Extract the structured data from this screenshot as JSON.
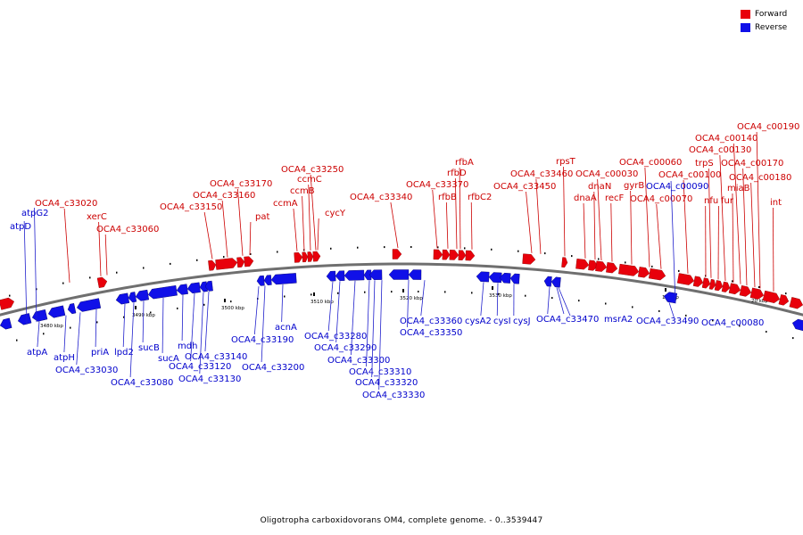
{
  "colors": {
    "forward": "#e8000b",
    "reverse": "#1010e8",
    "backbone": "#6f6f6f",
    "text_forward": "#cc0000",
    "text_reverse": "#0000cc"
  },
  "legend": {
    "forward_label": "Forward",
    "reverse_label": "Reverse"
  },
  "caption": "Oligotropha carboxidovorans OM4, complete genome. - 0..3539447",
  "ticks": [
    "3480 kbp",
    "3490 kbp",
    "3500 kbp",
    "3510 kbp",
    "3520 kbp",
    "3530 kbp",
    "10 kbp",
    "20 kbp"
  ],
  "forward_genes": [
    "xerC",
    "OCA4_c33020",
    "OCA4_c33060",
    "OCA4_c33150",
    "OCA4_c33160",
    "OCA4_c33170",
    "pat",
    "ccmA",
    "ccmB",
    "ccmC",
    "OCA4_c33250",
    "cycY",
    "OCA4_c33340",
    "OCA4_c33370",
    "rfbB",
    "rfbD",
    "rfbA",
    "rfbC2",
    "OCA4_c33450",
    "OCA4_c33460",
    "rpsT",
    "dnaA",
    "dnaN",
    "OCA4_c00030",
    "recF",
    "gyrB",
    "OCA4_c00060",
    "OCA4_c00070",
    "OCA4_c00100",
    "nfu",
    "trpS",
    "fur",
    "OCA4_c00130",
    "miaB",
    "OCA4_c00140",
    "OCA4_c00170",
    "OCA4_c00180",
    "OCA4_c00190",
    "int"
  ],
  "reverse_genes": [
    "atpG2",
    "atpD",
    "atpA",
    "atpH",
    "OCA4_c33030",
    "priA",
    "lpd2",
    "OCA4_c33080",
    "sucB",
    "sucA",
    "mdh",
    "OCA4_c33120",
    "OCA4_c33130",
    "OCA4_c33140",
    "OCA4_c33190",
    "OCA4_c33200",
    "acnA",
    "OCA4_c33280",
    "OCA4_c33290",
    "OCA4_c33300",
    "OCA4_c33310",
    "OCA4_c33320",
    "OCA4_c33330",
    "OCA4_c33350",
    "OCA4_c33360",
    "cysA2",
    "cysI",
    "cysJ",
    "OCA4_c33470",
    "msrA2",
    "OCA4_c33490",
    "OCA4_c00090",
    "OCA4_c00080"
  ]
}
